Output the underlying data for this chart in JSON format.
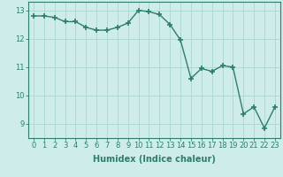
{
  "x": [
    0,
    1,
    2,
    3,
    4,
    5,
    6,
    7,
    8,
    9,
    10,
    11,
    12,
    13,
    14,
    15,
    16,
    17,
    18,
    19,
    20,
    21,
    22,
    23
  ],
  "y": [
    12.8,
    12.8,
    12.75,
    12.6,
    12.6,
    12.4,
    12.3,
    12.3,
    12.4,
    12.55,
    13.0,
    12.95,
    12.85,
    12.5,
    11.95,
    10.6,
    10.95,
    10.85,
    11.05,
    11.0,
    9.35,
    9.6,
    8.85,
    9.6
  ],
  "line_color": "#2e7d6e",
  "marker": "+",
  "markersize": 4,
  "markeredgewidth": 1.2,
  "linewidth": 1.0,
  "bg_color": "#ceecea",
  "grid_color": "#b0d8d4",
  "xlabel": "Humidex (Indice chaleur)",
  "xlabel_fontsize": 7,
  "tick_fontsize": 6,
  "ylim": [
    8.5,
    13.3
  ],
  "xlim": [
    -0.5,
    23.5
  ],
  "yticks": [
    9,
    10,
    11,
    12,
    13
  ],
  "xticks": [
    0,
    1,
    2,
    3,
    4,
    5,
    6,
    7,
    8,
    9,
    10,
    11,
    12,
    13,
    14,
    15,
    16,
    17,
    18,
    19,
    20,
    21,
    22,
    23
  ],
  "tick_color": "#2e7d6e",
  "spine_color": "#2e7d6e"
}
